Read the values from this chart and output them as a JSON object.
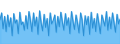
{
  "values": [
    -1.5,
    -0.5,
    -2.8,
    -1.0,
    -3.2,
    -0.8,
    -2.5,
    -1.2,
    -3.8,
    -0.6,
    -2.0,
    -1.5,
    -3.5,
    -0.4,
    -2.2,
    -1.8,
    -3.0,
    -0.9,
    -2.8,
    -0.3,
    -1.6,
    -3.2,
    -0.5,
    -2.4,
    -1.1,
    -3.6,
    -0.2,
    -1.9,
    -3.1,
    -0.7,
    -2.6,
    -1.3,
    -3.8,
    -0.5,
    -2.1,
    -1.6,
    -0.8,
    -3.3,
    -1.0,
    -2.5,
    -0.4,
    -1.8,
    -3.0,
    -0.6,
    -2.3,
    -1.2,
    -3.5,
    -0.3,
    -1.7,
    -2.9,
    -0.8,
    -2.0,
    -3.4,
    -0.5,
    -1.5,
    -3.8,
    -0.9,
    -2.2,
    -1.0,
    -3.6,
    -0.4,
    -2.7,
    -1.3,
    -3.2,
    -0.6,
    -2.0,
    -3.5,
    -0.8,
    -1.6,
    -2.4,
    -0.3,
    -3.0,
    -1.1,
    -2.8,
    -0.5,
    -1.9,
    -3.3,
    -0.7,
    -2.1,
    -1.4
  ],
  "line_color": "#2b8fd4",
  "fill_color": "#5bb8f5",
  "background_color": "#ffffff",
  "ylim": [
    -5.0,
    1.5
  ]
}
